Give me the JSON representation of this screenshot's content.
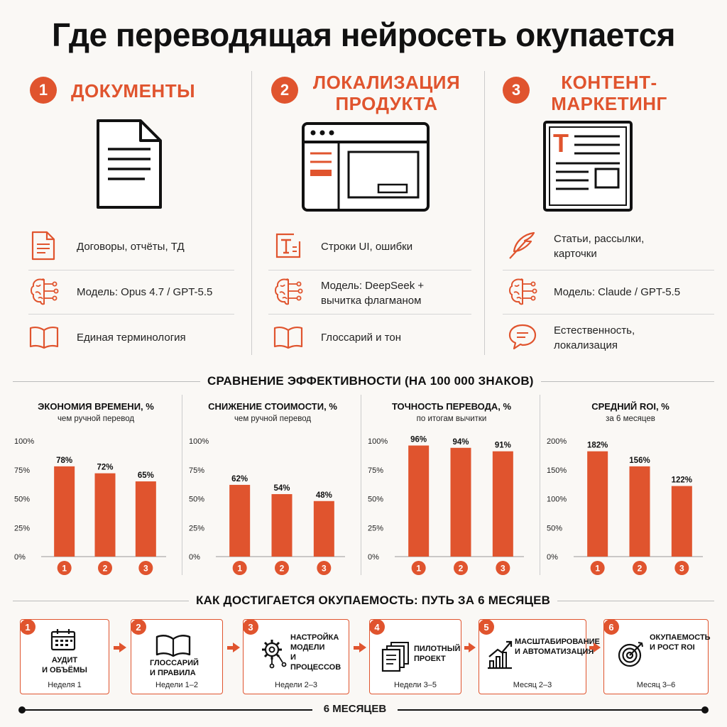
{
  "title": "Где переводящая нейросеть окупается",
  "columns": [
    {
      "num": "1",
      "heading_l1": "ДОКУМЕНТЫ",
      "heading_l2": "",
      "icon": "document-icon",
      "features": [
        {
          "icon": "file-text-icon",
          "text": "Договоры, отчёты, ТД"
        },
        {
          "icon": "brain-circuit-icon",
          "text": "Модель: Opus 4.7 / GPT-5.5"
        },
        {
          "icon": "book-icon",
          "text": "Единая терминология"
        }
      ]
    },
    {
      "num": "2",
      "heading_l1": "ЛОКАЛИЗАЦИЯ",
      "heading_l2": "ПРОДУКТА",
      "icon": "browser-window-icon",
      "features": [
        {
          "icon": "text-box-icon",
          "text": "Строки UI, ошибки"
        },
        {
          "icon": "brain-circuit-icon",
          "text": "Модель: DeepSeek + вычитка флагманом"
        },
        {
          "icon": "book-icon",
          "text": "Глоссарий и тон"
        }
      ]
    },
    {
      "num": "3",
      "heading_l1": "КОНТЕНТ-",
      "heading_l2": "МАРКЕТИНГ",
      "icon": "newspaper-icon",
      "features": [
        {
          "icon": "feather-icon",
          "text": "Статьи, рассылки, карточки"
        },
        {
          "icon": "brain-circuit-icon",
          "text": "Модель: Claude / GPT-5.5"
        },
        {
          "icon": "speech-bubble-icon",
          "text": "Естественность, локализация"
        }
      ]
    }
  ],
  "comparison_title": "СРАВНЕНИЕ ЭФФЕКТИВНОСТИ (НА 100 000 ЗНАКОВ)",
  "chart_data": [
    {
      "type": "bar",
      "title": "ЭКОНОМИЯ ВРЕМЕНИ, %",
      "subtitle": "чем ручной перевод",
      "categories": [
        "1",
        "2",
        "3"
      ],
      "values": [
        78,
        72,
        65
      ],
      "labels": [
        "78%",
        "72%",
        "65%"
      ],
      "ylim": [
        0,
        100
      ],
      "yticks": [
        "0%",
        "25%",
        "50%",
        "75%",
        "100%"
      ],
      "bar_color": "#e0542e"
    },
    {
      "type": "bar",
      "title": "СНИЖЕНИЕ СТОИМОСТИ, %",
      "subtitle": "чем ручной перевод",
      "categories": [
        "1",
        "2",
        "3"
      ],
      "values": [
        62,
        54,
        48
      ],
      "labels": [
        "62%",
        "54%",
        "48%"
      ],
      "ylim": [
        0,
        100
      ],
      "yticks": [
        "0%",
        "25%",
        "50%",
        "75%",
        "100%"
      ],
      "bar_color": "#e0542e"
    },
    {
      "type": "bar",
      "title": "ТОЧНОСТЬ ПЕРЕВОДА, %",
      "subtitle": "по итогам вычитки",
      "categories": [
        "1",
        "2",
        "3"
      ],
      "values": [
        96,
        94,
        91
      ],
      "labels": [
        "96%",
        "94%",
        "91%"
      ],
      "ylim": [
        0,
        100
      ],
      "yticks": [
        "0%",
        "25%",
        "50%",
        "75%",
        "100%"
      ],
      "bar_color": "#e0542e"
    },
    {
      "type": "bar",
      "title": "СРЕДНИЙ ROI, %",
      "subtitle": "за 6 месяцев",
      "categories": [
        "1",
        "2",
        "3"
      ],
      "values": [
        182,
        156,
        122
      ],
      "labels": [
        "182%",
        "156%",
        "122%"
      ],
      "ylim": [
        0,
        200
      ],
      "yticks": [
        "0%",
        "50%",
        "100%",
        "150%",
        "200%"
      ],
      "bar_color": "#e0542e"
    }
  ],
  "path_title": "КАК ДОСТИГАЕТСЯ ОКУПАЕМОСТЬ: ПУТЬ ЗА 6 МЕСЯЦЕВ",
  "steps": [
    {
      "num": "1",
      "icon": "calendar-icon",
      "label_l1": "АУДИТ",
      "label_l2": "И ОБЪЁМЫ",
      "label_l3": "",
      "week": "Неделя 1"
    },
    {
      "num": "2",
      "icon": "open-book-icon",
      "label_l1": "ГЛОССАРИЙ",
      "label_l2": "И ПРАВИЛА",
      "label_l3": "",
      "week": "Недели 1–2"
    },
    {
      "num": "3",
      "icon": "gear-network-icon",
      "label_l1": "НАСТРОЙКА",
      "label_l2": "МОДЕЛИ",
      "label_l3": "И ПРОЦЕССОВ",
      "week": "Недели 2–3"
    },
    {
      "num": "4",
      "icon": "documents-stack-icon",
      "label_l1": "ПИЛОТНЫЙ",
      "label_l2": "ПРОЕКТ",
      "label_l3": "",
      "week": "Недели 3–5"
    },
    {
      "num": "5",
      "icon": "growth-chart-icon",
      "label_l1": "МАСШТАБИРОВАНИЕ",
      "label_l2": "И АВТОМАТИЗАЦИЯ",
      "label_l3": "",
      "week": "Месяц 2–3"
    },
    {
      "num": "6",
      "icon": "target-icon",
      "label_l1": "ОКУПАЕМОСТЬ",
      "label_l2": "И РОСТ ROI",
      "label_l3": "",
      "week": "Месяц 3–6"
    }
  ],
  "timeline_label": "6 МЕСЯЦЕВ",
  "colors": {
    "accent": "#e0542e",
    "text": "#111111",
    "background": "#faf8f5"
  }
}
